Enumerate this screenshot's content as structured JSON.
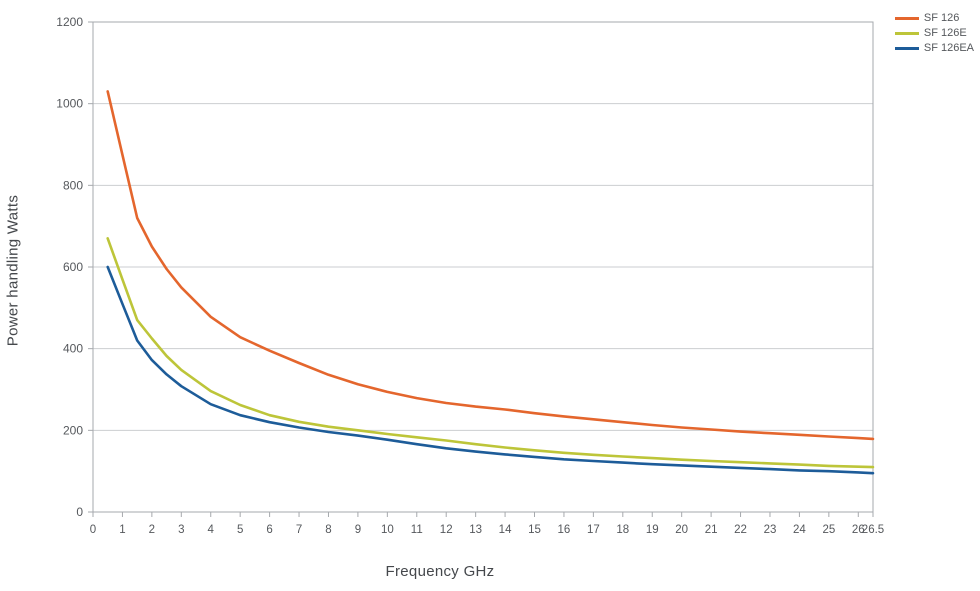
{
  "chart_data": {
    "type": "line",
    "title": "",
    "xlabel": "Frequency GHz",
    "ylabel": "Power handling Watts",
    "xlim": [
      0,
      26.5
    ],
    "ylim": [
      0,
      1200
    ],
    "xticks": [
      0,
      1,
      2,
      3,
      4,
      5,
      6,
      7,
      8,
      9,
      10,
      11,
      12,
      13,
      14,
      15,
      16,
      17,
      18,
      19,
      20,
      21,
      22,
      23,
      24,
      25,
      26,
      26.5
    ],
    "yticks": [
      0,
      200,
      400,
      600,
      800,
      1000,
      1200
    ],
    "grid": "horizontal",
    "legend_position": "top-right",
    "x": [
      0.5,
      1,
      1.5,
      2,
      2.5,
      3,
      4,
      5,
      6,
      7,
      8,
      9,
      10,
      11,
      12,
      13,
      14,
      15,
      16,
      17,
      18,
      19,
      20,
      21,
      22,
      23,
      24,
      25,
      26,
      26.5
    ],
    "series": [
      {
        "name": "SF 126",
        "color": "#E4662D",
        "values": [
          1030,
          875,
          720,
          650,
          595,
          550,
          478,
          428,
          395,
          365,
          336,
          313,
          294,
          279,
          267,
          258,
          251,
          242,
          234,
          227,
          220,
          213,
          207,
          202,
          197,
          193,
          189,
          185,
          181,
          179
        ]
      },
      {
        "name": "SF 126E",
        "color": "#BDC539",
        "values": [
          670,
          570,
          470,
          425,
          382,
          348,
          296,
          262,
          237,
          221,
          209,
          200,
          191,
          183,
          175,
          166,
          158,
          151,
          145,
          140,
          136,
          132,
          128,
          125,
          122,
          119,
          116,
          113,
          111,
          110
        ]
      },
      {
        "name": "SF 126EA",
        "color": "#1D5C99",
        "values": [
          600,
          510,
          420,
          372,
          337,
          308,
          264,
          237,
          220,
          207,
          196,
          187,
          177,
          166,
          156,
          148,
          141,
          135,
          129,
          125,
          121,
          117,
          114,
          111,
          108,
          105,
          102,
          100,
          97,
          95
        ]
      }
    ]
  },
  "style": {
    "grid_color": "#CBCED1",
    "frame_color": "#A6A9AD",
    "tick_color": "#A6A9AD",
    "tick_label_color": "#55585C",
    "axis_title_color": "#45484C",
    "background": "#FFFFFF"
  }
}
